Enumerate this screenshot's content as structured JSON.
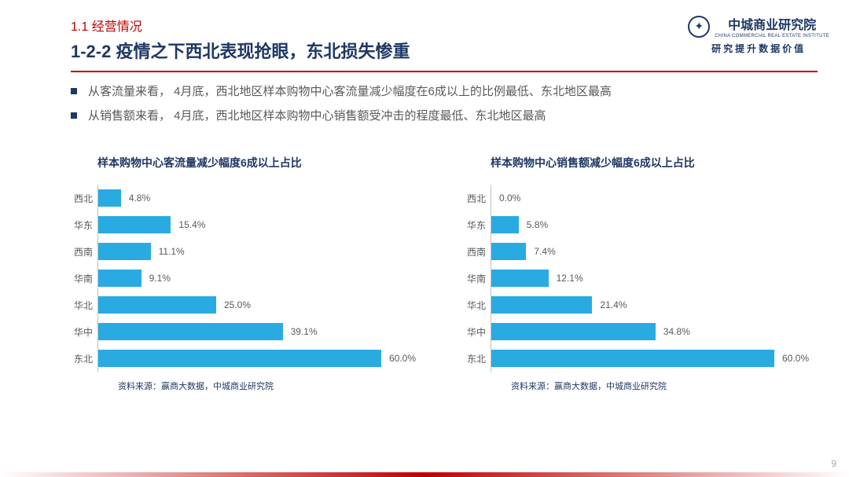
{
  "header": {
    "section_num": "1.1  经营情况",
    "title": "1-2-2  疫情之下西北表现抢眼，东北损失惨重"
  },
  "logo": {
    "main": "中城商业研究院",
    "sub": "CHINA COMMERCIAL REAL ESTATE INSTITUTE",
    "tagline": "研究提升数据价值"
  },
  "bullets": [
    "从客流量来看， 4月底，西北地区样本购物中心客流量减少幅度在6成以上的比例最低、东北地区最高",
    "从销售额来看， 4月底，西北地区样本购物中心销售额受冲击的程度最低、东北地区最高"
  ],
  "chart_left": {
    "title": "样本购物中心客流量减少幅度6成以上占比",
    "type": "bar-horizontal",
    "bar_color": "#29abe2",
    "label_color": "#595959",
    "axis_color": "#bfbfbf",
    "max": 60.0,
    "categories": [
      "西北",
      "华东",
      "西南",
      "华南",
      "华北",
      "华中",
      "东北"
    ],
    "values": [
      4.8,
      15.4,
      11.1,
      9.1,
      25.0,
      39.1,
      60.0
    ],
    "value_labels": [
      "4.8%",
      "15.4%",
      "11.1%",
      "9.1%",
      "25.0%",
      "39.1%",
      "60.0%"
    ],
    "source": "资料来源：赢商大数据，中城商业研究院"
  },
  "chart_right": {
    "title": "样本购物中心销售额减少幅度6成以上占比",
    "type": "bar-horizontal",
    "bar_color": "#29abe2",
    "label_color": "#595959",
    "axis_color": "#bfbfbf",
    "max": 60.0,
    "categories": [
      "西北",
      "华东",
      "西南",
      "华南",
      "华北",
      "华中",
      "东北"
    ],
    "values": [
      0.0,
      5.8,
      7.4,
      12.1,
      21.4,
      34.8,
      60.0
    ],
    "value_labels": [
      "0.0%",
      "5.8%",
      "7.4%",
      "12.1%",
      "21.4%",
      "34.8%",
      "60.0%"
    ],
    "source": "资料来源：赢商大数据，中城商业研究院"
  },
  "page_number": "9",
  "colors": {
    "accent_red": "#c00000",
    "brand_navy": "#1f3864",
    "text_grey": "#595959",
    "bar": "#29abe2",
    "page_num": "#a6a6a6"
  }
}
